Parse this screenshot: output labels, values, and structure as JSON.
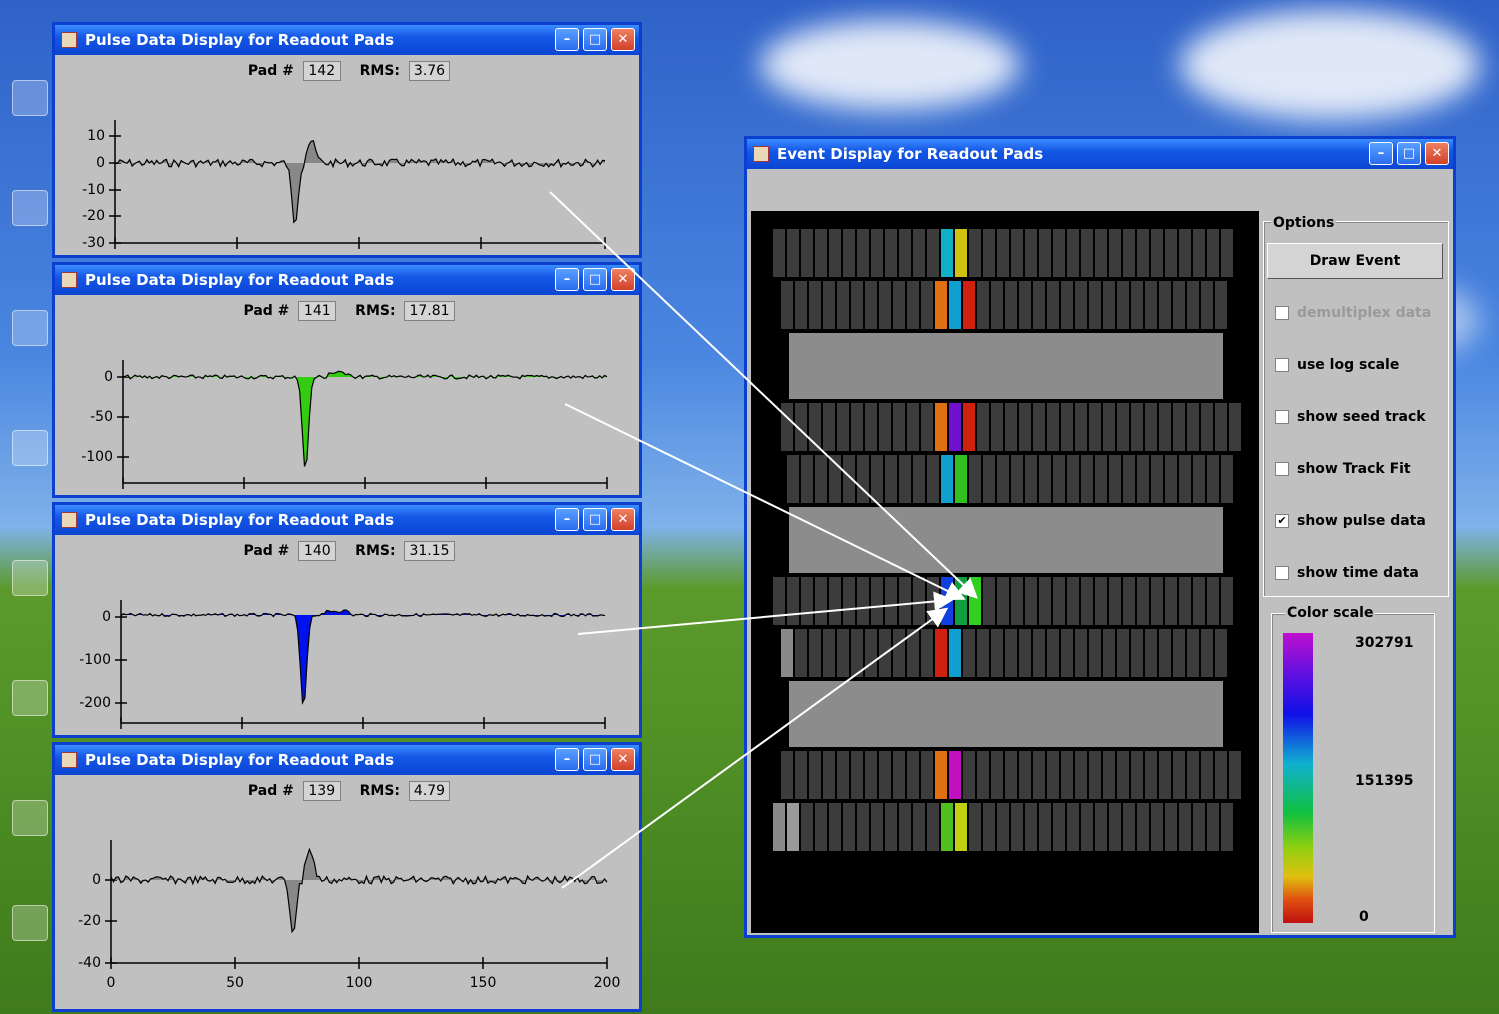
{
  "pulse_windows": [
    {
      "title": "Pulse Data Display for Readout Pads",
      "pad_label": "Pad #",
      "pad": "142",
      "rms_label": "RMS:",
      "rms": "3.76",
      "y_ticks": [
        "10",
        "0",
        "-10",
        "-20",
        "-30"
      ],
      "fill_color": "#888888"
    },
    {
      "title": "Pulse Data Display for Readout Pads",
      "pad_label": "Pad #",
      "pad": "141",
      "rms_label": "RMS:",
      "rms": "17.81",
      "y_ticks": [
        "0",
        "-50",
        "-100"
      ],
      "fill_color": "#33cc11"
    },
    {
      "title": "Pulse Data Display for Readout Pads",
      "pad_label": "Pad #",
      "pad": "140",
      "rms_label": "RMS:",
      "rms": "31.15",
      "y_ticks": [
        "0",
        "-100",
        "-200"
      ],
      "fill_color": "#0011ee"
    },
    {
      "title": "Pulse Data Display for Readout Pads",
      "pad_label": "Pad #",
      "pad": "139",
      "rms_label": "RMS:",
      "rms": "4.79",
      "y_ticks": [
        "0",
        "-20",
        "-40"
      ],
      "x_ticks": [
        "0",
        "50",
        "100",
        "150",
        "200"
      ],
      "fill_color": "#888888"
    }
  ],
  "event_window": {
    "title": "Event Display for Readout Pads",
    "options_label": "Options",
    "draw_button": "Draw Event",
    "checkboxes": [
      {
        "label": "demultiplex data",
        "checked": false,
        "enabled": false
      },
      {
        "label": "use log scale",
        "checked": false,
        "enabled": true
      },
      {
        "label": "show seed track",
        "checked": false,
        "enabled": true
      },
      {
        "label": "show Track Fit",
        "checked": false,
        "enabled": true
      },
      {
        "label": "show pulse data",
        "checked": true,
        "enabled": true
      },
      {
        "label": "show time data",
        "checked": false,
        "enabled": true
      }
    ],
    "color_scale_label": "Color scale",
    "color_scale_values": [
      "302791",
      "151395",
      "0"
    ]
  },
  "icons": {
    "window": "java-cup-icon",
    "minimize": "minimize-icon",
    "maximize": "maximize-icon",
    "close": "close-icon",
    "check": "checkmark-icon"
  }
}
